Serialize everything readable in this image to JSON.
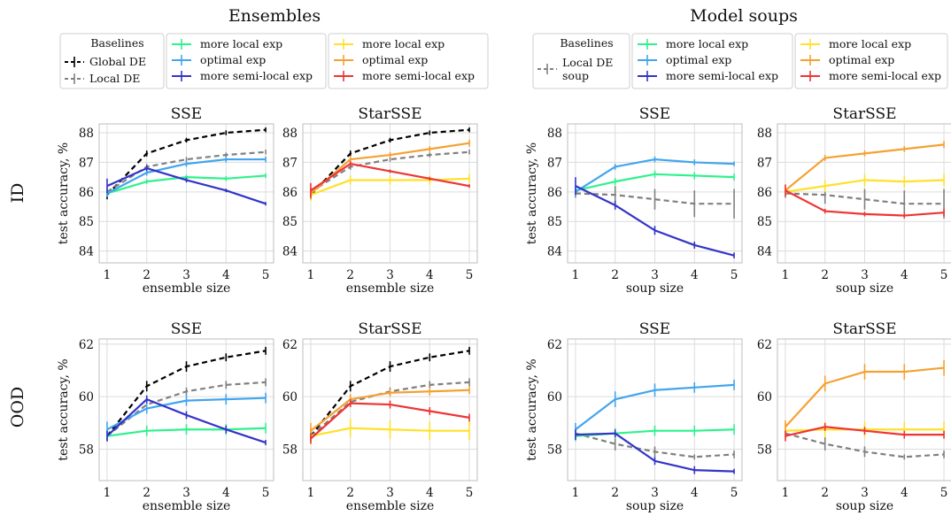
{
  "figure": {
    "group_titles": [
      "Ensembles",
      "Model soups"
    ],
    "row_labels": [
      "ID",
      "OOD"
    ]
  },
  "legends": [
    {
      "head": "Baselines",
      "baselines": [
        {
          "label": "Global DE",
          "color": "#000000",
          "dashed": true
        },
        {
          "label": "Local DE",
          "color": "#808080",
          "dashed": true
        }
      ],
      "green_col": [
        {
          "label": "more local exp",
          "color": "#2ef28c"
        },
        {
          "label": "optimal exp",
          "color": "#42a5ee"
        },
        {
          "label": "more semi-local exp",
          "color": "#3434c8"
        }
      ],
      "yellow_col": [
        {
          "label": "more local exp",
          "color": "#fde12b"
        },
        {
          "label": "optimal exp",
          "color": "#f5a132"
        },
        {
          "label": "more semi-local exp",
          "color": "#ee3535"
        }
      ]
    },
    {
      "head": "Baselines",
      "baselines": [
        {
          "label": "Local DE",
          "label2": "soup",
          "color": "#808080",
          "dashed": true
        }
      ],
      "green_col": [
        {
          "label": "more local exp",
          "color": "#2ef28c"
        },
        {
          "label": "optimal exp",
          "color": "#42a5ee"
        },
        {
          "label": "more semi-local exp",
          "color": "#3434c8"
        }
      ],
      "yellow_col": [
        {
          "label": "more local exp",
          "color": "#fde12b"
        },
        {
          "label": "optimal exp",
          "color": "#f5a132"
        },
        {
          "label": "more semi-local exp",
          "color": "#ee3535"
        }
      ]
    }
  ],
  "chart_data": [
    {
      "type": "line",
      "title": "SSE",
      "xlabel": "ensemble size",
      "ylabel": "test accuracy, %",
      "x": [
        1,
        2,
        3,
        4,
        5
      ],
      "xlim": [
        0.8,
        5.2
      ],
      "ylim": [
        83.6,
        88.3
      ],
      "yticks": [
        84,
        85,
        86,
        87,
        88
      ],
      "grid": true,
      "series": [
        {
          "name": "Global DE",
          "color": "#000000",
          "dashed": true,
          "values": [
            85.9,
            87.3,
            87.75,
            88.0,
            88.1
          ],
          "err": [
            0.15,
            0.1,
            0.08,
            0.08,
            0.08
          ]
        },
        {
          "name": "Local DE",
          "color": "#808080",
          "dashed": true,
          "values": [
            86.0,
            86.85,
            87.1,
            87.25,
            87.35
          ],
          "err": [
            0.15,
            0.1,
            0.08,
            0.08,
            0.08
          ]
        },
        {
          "name": "more local exp",
          "color": "#2ef28c",
          "values": [
            85.95,
            86.35,
            86.5,
            86.45,
            86.55
          ],
          "err": [
            0.1,
            0.08,
            0.08,
            0.08,
            0.08
          ]
        },
        {
          "name": "optimal exp",
          "color": "#42a5ee",
          "values": [
            85.95,
            86.65,
            86.95,
            87.1,
            87.1
          ],
          "err": [
            0.12,
            0.1,
            0.1,
            0.1,
            0.1
          ]
        },
        {
          "name": "more semi-local exp",
          "color": "#3434c8",
          "values": [
            86.2,
            86.8,
            86.4,
            86.05,
            85.6
          ],
          "err": [
            0.25,
            0.1,
            0.08,
            0.06,
            0.06
          ]
        }
      ]
    },
    {
      "type": "line",
      "title": "StarSSE",
      "xlabel": "ensemble size",
      "ylabel": "",
      "x": [
        1,
        2,
        3,
        4,
        5
      ],
      "xlim": [
        0.8,
        5.2
      ],
      "ylim": [
        83.6,
        88.3
      ],
      "yticks": [
        84,
        85,
        86,
        87,
        88
      ],
      "grid": true,
      "series": [
        {
          "name": "Global DE",
          "color": "#000000",
          "dashed": true,
          "values": [
            85.9,
            87.3,
            87.75,
            88.0,
            88.1
          ],
          "err": [
            0.15,
            0.1,
            0.08,
            0.08,
            0.08
          ]
        },
        {
          "name": "Local DE",
          "color": "#808080",
          "dashed": true,
          "values": [
            86.0,
            86.85,
            87.1,
            87.25,
            87.35
          ],
          "err": [
            0.15,
            0.1,
            0.08,
            0.08,
            0.08
          ]
        },
        {
          "name": "more local exp",
          "color": "#fde12b",
          "values": [
            85.9,
            86.4,
            86.4,
            86.4,
            86.45
          ],
          "err": [
            0.2,
            0.15,
            0.15,
            0.15,
            0.15
          ]
        },
        {
          "name": "optimal exp",
          "color": "#f5a132",
          "values": [
            85.95,
            87.1,
            87.25,
            87.45,
            87.65
          ],
          "err": [
            0.2,
            0.12,
            0.1,
            0.1,
            0.12
          ]
        },
        {
          "name": "more semi-local exp",
          "color": "#ee3535",
          "values": [
            86.05,
            86.95,
            86.7,
            86.45,
            86.2
          ],
          "err": [
            0.25,
            0.1,
            0.06,
            0.06,
            0.06
          ]
        }
      ]
    },
    {
      "type": "line",
      "title": "SSE",
      "xlabel": "soup size",
      "ylabel": "test accuracy, %",
      "x": [
        1,
        2,
        3,
        4,
        5
      ],
      "xlim": [
        0.8,
        5.2
      ],
      "ylim": [
        83.6,
        88.3
      ],
      "yticks": [
        84,
        85,
        86,
        87,
        88
      ],
      "grid": true,
      "series": [
        {
          "name": "Local DE soup",
          "color": "#808080",
          "dashed": true,
          "values": [
            85.95,
            85.9,
            85.75,
            85.6,
            85.6
          ],
          "err": [
            0.15,
            0.3,
            0.35,
            0.45,
            0.5
          ]
        },
        {
          "name": "more local exp",
          "color": "#2ef28c",
          "values": [
            86.05,
            86.35,
            86.6,
            86.55,
            86.5
          ],
          "err": [
            0.1,
            0.12,
            0.12,
            0.12,
            0.12
          ]
        },
        {
          "name": "optimal exp",
          "color": "#42a5ee",
          "values": [
            86.0,
            86.85,
            87.1,
            87.0,
            86.95
          ],
          "err": [
            0.12,
            0.1,
            0.1,
            0.1,
            0.08
          ]
        },
        {
          "name": "more semi-local exp",
          "color": "#3434c8",
          "values": [
            86.2,
            85.55,
            84.7,
            84.2,
            83.85
          ],
          "err": [
            0.3,
            0.15,
            0.15,
            0.12,
            0.1
          ]
        }
      ]
    },
    {
      "type": "line",
      "title": "StarSSE",
      "xlabel": "soup size",
      "ylabel": "",
      "x": [
        1,
        2,
        3,
        4,
        5
      ],
      "xlim": [
        0.8,
        5.2
      ],
      "ylim": [
        83.6,
        88.3
      ],
      "yticks": [
        84,
        85,
        86,
        87,
        88
      ],
      "grid": true,
      "series": [
        {
          "name": "Local DE soup",
          "color": "#808080",
          "dashed": true,
          "values": [
            85.95,
            85.9,
            85.75,
            85.6,
            85.6
          ],
          "err": [
            0.15,
            0.3,
            0.35,
            0.45,
            0.5
          ]
        },
        {
          "name": "more local exp",
          "color": "#fde12b",
          "values": [
            86.0,
            86.2,
            86.4,
            86.35,
            86.4
          ],
          "err": [
            0.15,
            0.2,
            0.2,
            0.2,
            0.2
          ]
        },
        {
          "name": "optimal exp",
          "color": "#f5a132",
          "values": [
            86.05,
            87.15,
            87.3,
            87.45,
            87.6
          ],
          "err": [
            0.2,
            0.1,
            0.1,
            0.1,
            0.12
          ]
        },
        {
          "name": "more semi-local exp",
          "color": "#ee3535",
          "values": [
            86.05,
            85.35,
            85.25,
            85.2,
            85.3
          ],
          "err": [
            0.2,
            0.08,
            0.08,
            0.1,
            0.12
          ]
        }
      ]
    },
    {
      "type": "line",
      "title": "SSE",
      "xlabel": "ensemble size",
      "ylabel": "test accuracy, %",
      "x": [
        1,
        2,
        3,
        4,
        5
      ],
      "xlim": [
        0.8,
        5.2
      ],
      "ylim": [
        56.8,
        62.2
      ],
      "yticks": [
        58,
        60,
        62
      ],
      "grid": true,
      "series": [
        {
          "name": "Global DE",
          "color": "#000000",
          "dashed": true,
          "values": [
            58.5,
            60.4,
            61.15,
            61.5,
            61.75
          ],
          "err": [
            0.2,
            0.2,
            0.2,
            0.15,
            0.15
          ]
        },
        {
          "name": "Local DE",
          "color": "#808080",
          "dashed": true,
          "values": [
            58.5,
            59.7,
            60.2,
            60.45,
            60.55
          ],
          "err": [
            0.2,
            0.2,
            0.15,
            0.15,
            0.15
          ]
        },
        {
          "name": "more local exp",
          "color": "#2ef28c",
          "values": [
            58.5,
            58.7,
            58.75,
            58.75,
            58.8
          ],
          "err": [
            0.2,
            0.2,
            0.2,
            0.2,
            0.2
          ]
        },
        {
          "name": "optimal exp",
          "color": "#42a5ee",
          "values": [
            58.75,
            59.55,
            59.85,
            59.9,
            59.95
          ],
          "err": [
            0.3,
            0.2,
            0.2,
            0.2,
            0.2
          ]
        },
        {
          "name": "more semi-local exp",
          "color": "#3434c8",
          "values": [
            58.5,
            59.9,
            59.3,
            58.75,
            58.25
          ],
          "err": [
            0.2,
            0.15,
            0.15,
            0.15,
            0.1
          ]
        }
      ]
    },
    {
      "type": "line",
      "title": "StarSSE",
      "xlabel": "ensemble size",
      "ylabel": "",
      "x": [
        1,
        2,
        3,
        4,
        5
      ],
      "xlim": [
        0.8,
        5.2
      ],
      "ylim": [
        56.8,
        62.2
      ],
      "yticks": [
        58,
        60,
        62
      ],
      "grid": true,
      "series": [
        {
          "name": "Global DE",
          "color": "#000000",
          "dashed": true,
          "values": [
            58.5,
            60.4,
            61.15,
            61.5,
            61.75
          ],
          "err": [
            0.2,
            0.2,
            0.2,
            0.15,
            0.15
          ]
        },
        {
          "name": "Local DE",
          "color": "#808080",
          "dashed": true,
          "values": [
            58.5,
            59.8,
            60.2,
            60.45,
            60.55
          ],
          "err": [
            0.2,
            0.2,
            0.15,
            0.15,
            0.15
          ]
        },
        {
          "name": "more local exp",
          "color": "#fde12b",
          "values": [
            58.5,
            58.8,
            58.75,
            58.7,
            58.7
          ],
          "err": [
            0.3,
            0.35,
            0.35,
            0.35,
            0.35
          ]
        },
        {
          "name": "optimal exp",
          "color": "#f5a132",
          "values": [
            58.7,
            59.9,
            60.15,
            60.2,
            60.25
          ],
          "err": [
            0.3,
            0.2,
            0.15,
            0.15,
            0.15
          ]
        },
        {
          "name": "more semi-local exp",
          "color": "#ee3535",
          "values": [
            58.4,
            59.75,
            59.7,
            59.45,
            59.2
          ],
          "err": [
            0.2,
            0.15,
            0.15,
            0.15,
            0.15
          ]
        }
      ]
    },
    {
      "type": "line",
      "title": "SSE",
      "xlabel": "soup size",
      "ylabel": "test accuracy, %",
      "x": [
        1,
        2,
        3,
        4,
        5
      ],
      "xlim": [
        0.8,
        5.2
      ],
      "ylim": [
        56.8,
        62.2
      ],
      "yticks": [
        58,
        60,
        62
      ],
      "grid": true,
      "series": [
        {
          "name": "Local DE soup",
          "color": "#808080",
          "dashed": true,
          "values": [
            58.6,
            58.2,
            57.9,
            57.7,
            57.8
          ],
          "err": [
            0.2,
            0.25,
            0.2,
            0.1,
            0.15
          ]
        },
        {
          "name": "more local exp",
          "color": "#2ef28c",
          "values": [
            58.5,
            58.6,
            58.7,
            58.7,
            58.75
          ],
          "err": [
            0.2,
            0.2,
            0.2,
            0.2,
            0.2
          ]
        },
        {
          "name": "optimal exp",
          "color": "#42a5ee",
          "values": [
            58.75,
            59.9,
            60.25,
            60.35,
            60.45
          ],
          "err": [
            0.25,
            0.3,
            0.25,
            0.2,
            0.2
          ]
        },
        {
          "name": "more semi-local exp",
          "color": "#3434c8",
          "values": [
            58.55,
            58.6,
            57.55,
            57.2,
            57.15
          ],
          "err": [
            0.2,
            0.15,
            0.15,
            0.15,
            0.1
          ]
        }
      ]
    },
    {
      "type": "line",
      "title": "StarSSE",
      "xlabel": "soup size",
      "ylabel": "",
      "x": [
        1,
        2,
        3,
        4,
        5
      ],
      "xlim": [
        0.8,
        5.2
      ],
      "ylim": [
        56.8,
        62.2
      ],
      "yticks": [
        58,
        60,
        62
      ],
      "grid": true,
      "series": [
        {
          "name": "Local DE soup",
          "color": "#808080",
          "dashed": true,
          "values": [
            58.6,
            58.2,
            57.9,
            57.7,
            57.8
          ],
          "err": [
            0.2,
            0.25,
            0.2,
            0.1,
            0.15
          ]
        },
        {
          "name": "more local exp",
          "color": "#fde12b",
          "values": [
            58.7,
            58.75,
            58.75,
            58.75,
            58.75
          ],
          "err": [
            0.3,
            0.3,
            0.3,
            0.3,
            0.3
          ]
        },
        {
          "name": "optimal exp",
          "color": "#f5a132",
          "values": [
            58.85,
            60.5,
            60.95,
            60.95,
            61.1
          ],
          "err": [
            0.25,
            0.3,
            0.3,
            0.3,
            0.3
          ]
        },
        {
          "name": "more semi-local exp",
          "color": "#ee3535",
          "values": [
            58.5,
            58.85,
            58.7,
            58.55,
            58.55
          ],
          "err": [
            0.2,
            0.15,
            0.15,
            0.15,
            0.15
          ]
        }
      ]
    }
  ]
}
